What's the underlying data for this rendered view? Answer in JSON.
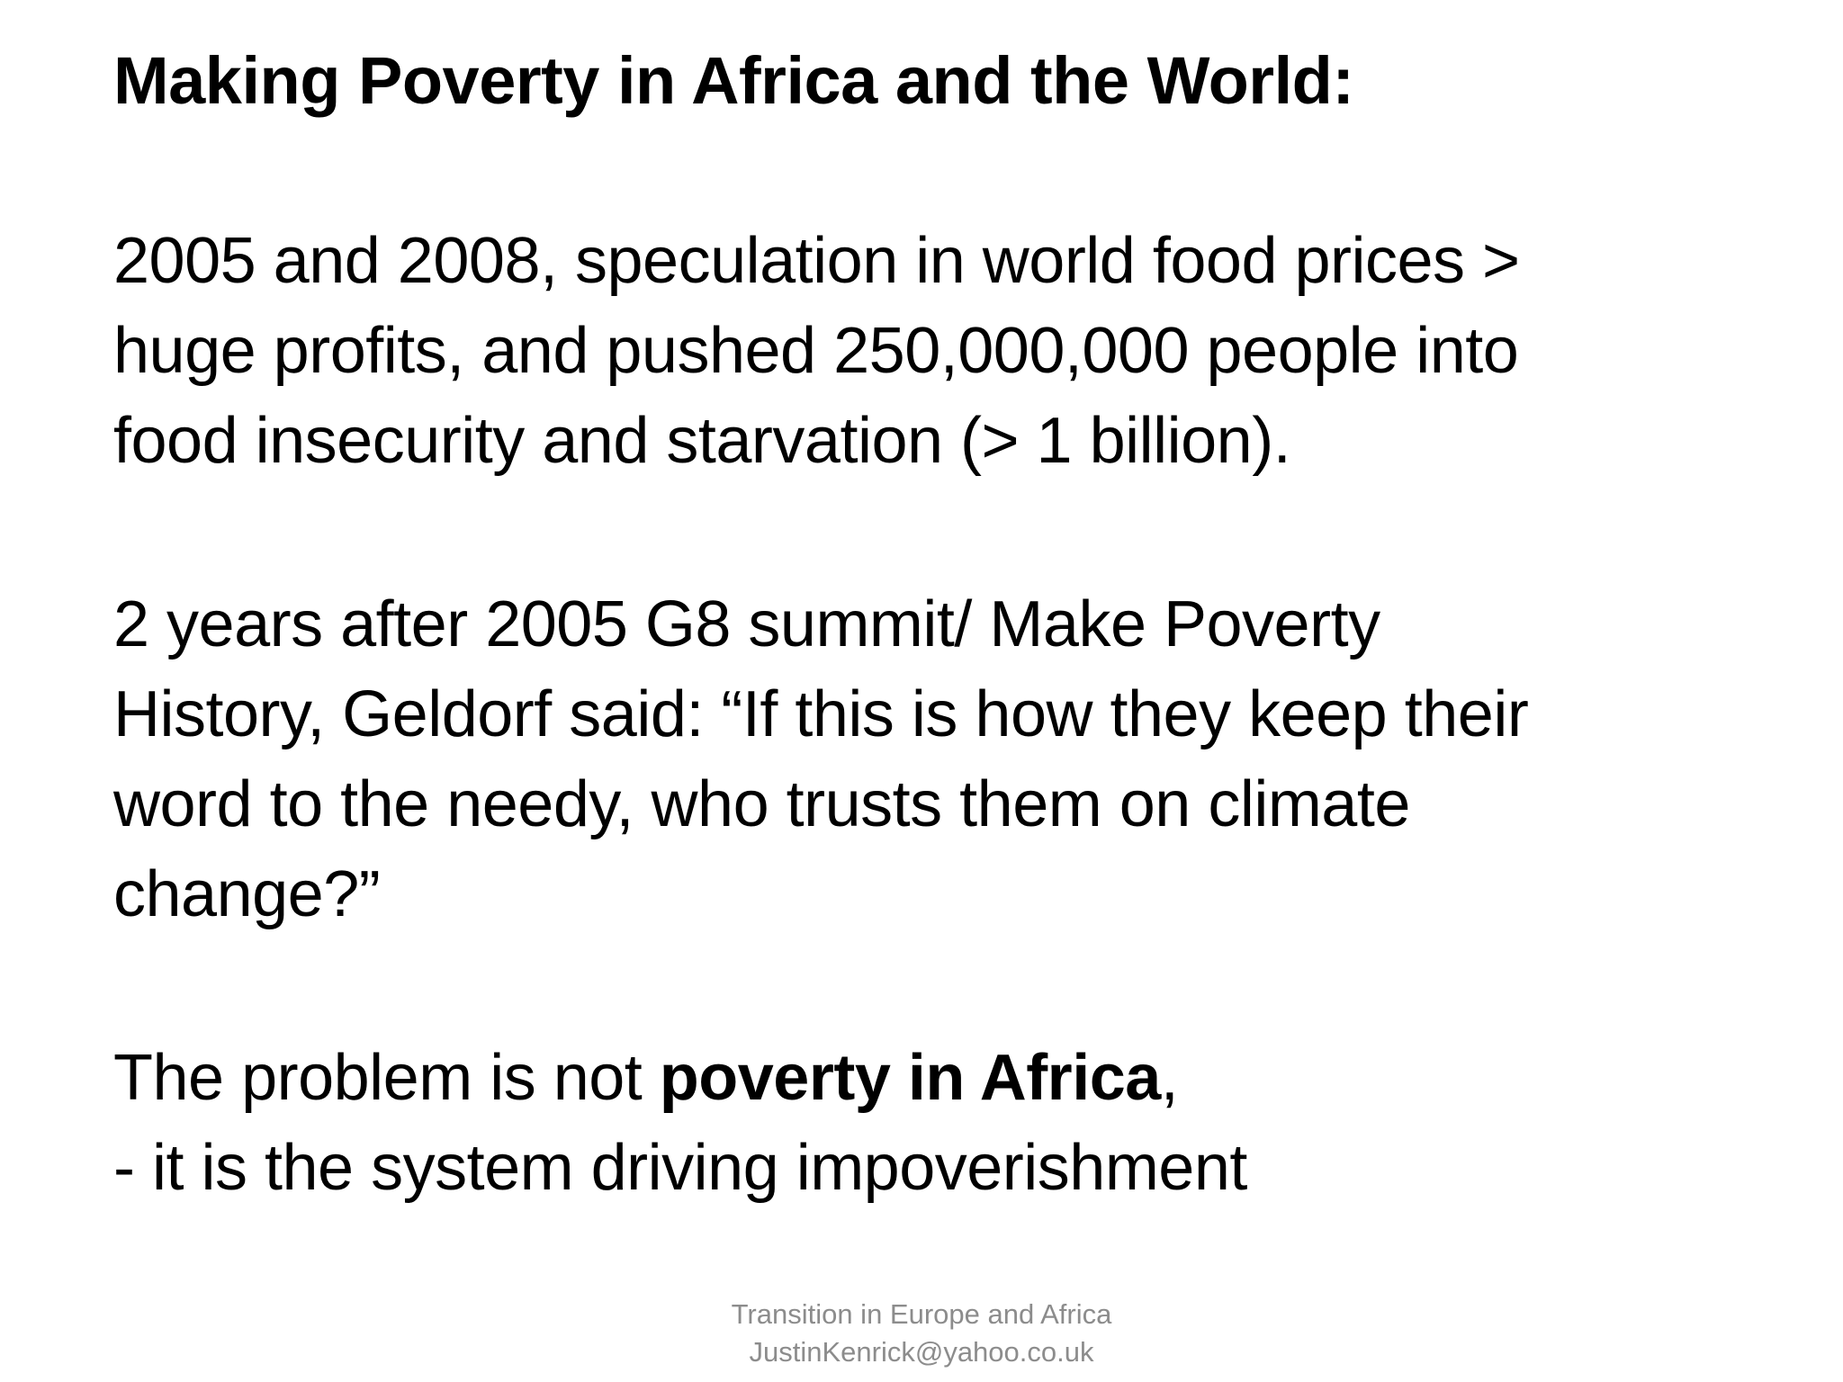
{
  "slide": {
    "title": "Making Poverty in Africa and the World:",
    "paragraph1": {
      "lines": [
        "2005 and 2008, speculation in world food prices >",
        "huge profits, and pushed 250,000,000 people into",
        "food insecurity and starvation (> 1 billion)."
      ]
    },
    "paragraph2": {
      "lines": [
        "2 years after 2005 G8 summit/ Make Poverty",
        "History, Geldorf said: “If this is how they keep their",
        "word to the needy, who trusts them on climate",
        "change?”"
      ]
    },
    "paragraph3": {
      "line1_prefix": "The problem is not ",
      "line1_bold": "poverty in Africa",
      "line1_suffix": ",",
      "line2": "- it is the system driving impoverishment"
    },
    "footer": {
      "line1": "Transition in Europe and Africa",
      "line2": "JustinKenrick@yahoo.co.uk"
    }
  }
}
